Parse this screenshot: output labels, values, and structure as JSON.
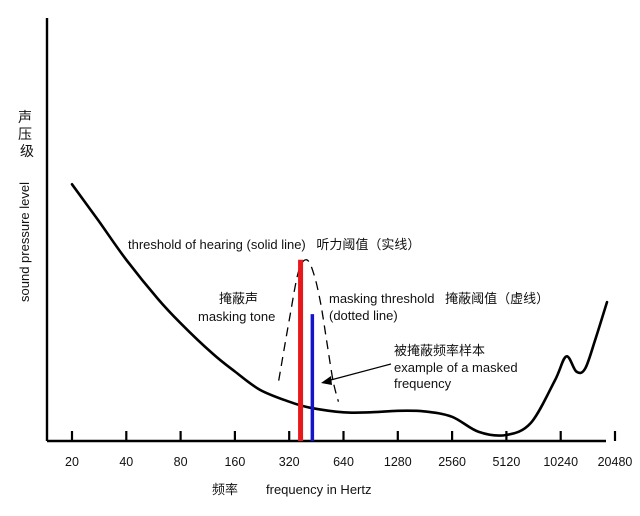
{
  "chart_data": {
    "type": "line",
    "xlabel": "frequency in Hertz",
    "xlabel_cn": "频率",
    "ylabel": "sound pressure level",
    "ylabel_cn": "声压级",
    "x_scale": "log2",
    "x_ticks": [
      20,
      40,
      80,
      160,
      320,
      640,
      1280,
      2560,
      5120,
      10240,
      20480
    ],
    "x_tick_labels": [
      "20",
      "40",
      "80",
      "160",
      "320",
      "640",
      "1280",
      "2560",
      "5120",
      "10240",
      "20480"
    ],
    "grid": false,
    "series": [
      {
        "label_en": "threshold of hearing (solid line)",
        "label_cn": "听力阈值（实线）",
        "style": "solid",
        "color": "#000000",
        "x": [
          20,
          28,
          40,
          60,
          80,
          120,
          160,
          220,
          320,
          420,
          640,
          900,
          1280,
          1800,
          2560,
          3600,
          5120,
          7000,
          9500,
          11000,
          12500,
          14000,
          16000,
          18500
        ],
        "y": [
          85,
          73,
          60,
          47,
          39,
          29,
          23,
          17,
          13,
          11,
          9.5,
          9.5,
          10,
          9.8,
          8,
          3,
          2,
          6,
          20,
          28,
          23,
          24,
          34,
          46
        ]
      },
      {
        "label_en": "masking threshold",
        "label_cn": "掩蔽阈值（虚线）",
        "label_note": "(dotted line)",
        "style": "dashed",
        "color": "#000000",
        "x": [
          280,
          320,
          360,
          400,
          440,
          480,
          520,
          560,
          600
        ],
        "y": [
          20,
          40,
          56,
          60,
          55,
          45,
          32,
          20,
          13
        ]
      }
    ],
    "markers": [
      {
        "label_en": "masking tone",
        "label_cn": "掩蔽声",
        "color": "#e8171b",
        "x": 370,
        "y_top": 60
      },
      {
        "label_en": "example of a masked frequency",
        "label_cn": "被掩蔽频率样本",
        "color": "#1414c8",
        "x": 430,
        "y_top": 42
      }
    ]
  }
}
